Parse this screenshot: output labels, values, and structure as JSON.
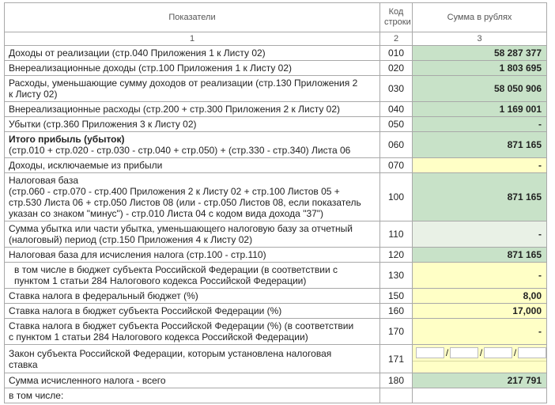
{
  "header": {
    "indicator": "Показатели",
    "code": "Код строки",
    "sum": "Сумма в рублях"
  },
  "numbering": [
    "1",
    "2",
    "3"
  ],
  "rows": [
    {
      "label": "Доходы от реализации (стр.040 Приложения 1 к Листу 02)",
      "code": "010",
      "value": "58 287 377",
      "fill": "green"
    },
    {
      "label": "Внереализационные доходы (стр.100 Приложения 1 к Листу 02)",
      "code": "020",
      "value": "1 803 695",
      "fill": "green"
    },
    {
      "label": "Расходы, уменьшающие сумму доходов от реализации (стр.130 Приложения 2\nк Листу 02)",
      "code": "030",
      "value": "58 050 906",
      "fill": "green"
    },
    {
      "label": "Внереализационные расходы (стр.200 + стр.300 Приложения 2 к Листу 02)",
      "code": "040",
      "value": "1 169 001",
      "fill": "green"
    },
    {
      "label": "Убытки (стр.360 Приложения 3 к Листу 02)",
      "code": "050",
      "value": "-",
      "fill": "green"
    },
    {
      "title": "Итого прибыль (убыток)",
      "bold": true,
      "label": "(стр.010 + стр.020 - стр.030 - стр.040 + стр.050) + (стр.330 - стр.340) Листа 06",
      "code": "060",
      "value": "871 165",
      "fill": "green"
    },
    {
      "label": "Доходы, исключаемые из прибыли",
      "code": "070",
      "value": "-",
      "fill": "yellow"
    },
    {
      "title": "Налоговая база",
      "label": "(стр.060 - стр.070 - стр.400 Приложения 2 к Листу 02 + стр.100 Листов 05 +\nстр.530 Листа 06 + стр.050 Листов 08 (или - стр.050 Листов 08, если показатель\nуказан со знаком \"минус\") - стр.010 Листа 04 с кодом вида дохода \"37\")",
      "code": "100",
      "value": "871 165",
      "fill": "green"
    },
    {
      "label": "Сумма убытка или части убытка, уменьшающего налоговую базу за отчетный\n(налоговый) период (стр.150 Приложения 4 к Листу 02)",
      "code": "110",
      "value": "-",
      "fill": "light"
    },
    {
      "label": "Налоговая база для исчисления налога (стр.100 - стр.110)",
      "code": "120",
      "value": "871 165",
      "fill": "green"
    },
    {
      "label": "в том числе в бюджет субъекта Российской Федерации (в соответствии с\nпунктом 1 статьи 284 Налогового кодекса Российской Федерации)",
      "code": "130",
      "value": "-",
      "fill": "yellow",
      "indent": true
    },
    {
      "label": "Ставка налога в федеральный бюджет (%)",
      "code": "150",
      "value": "8,00",
      "fill": "yellow"
    },
    {
      "label": "Ставка налога в бюджет субъекта Российской Федерации (%)",
      "code": "160",
      "value": "17,000",
      "fill": "yellow"
    },
    {
      "label": "Ставка налога в бюджет субъекта Российской Федерации (%) (в соответствии\nс пунктом 1 статьи 284 Налогового кодекса Российской Федерации)",
      "code": "170",
      "value": "-",
      "fill": "yellow"
    },
    {
      "label": "Закон субъекта Российской Федерации, которым установлена налоговая\nставка",
      "code": "171",
      "separator": "/",
      "fill": "yellow"
    },
    {
      "label": "Сумма исчисленного налога - всего",
      "code": "180",
      "value": "217 791",
      "fill": "green"
    },
    {
      "label": "в том числе:"
    }
  ]
}
